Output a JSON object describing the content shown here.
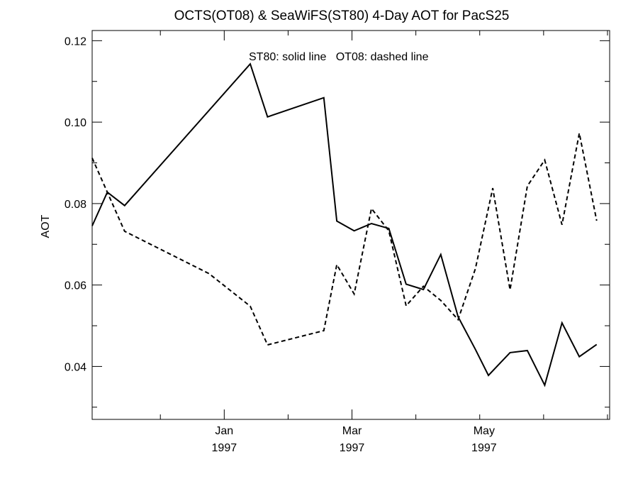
{
  "chart_data": {
    "type": "line",
    "title": "OCTS(OT08) & SeaWiFS(ST80) 4-Day AOT for PacS25",
    "ylabel": "AOT",
    "xlabel": "",
    "annotation": "ST80: solid line   OT08: dashed line",
    "ylim": [
      0.027,
      0.1225
    ],
    "xlim": [
      "1996-11-01",
      "1997-06-28"
    ],
    "y_ticks": [
      "0.04",
      "0.06",
      "0.08",
      "0.10",
      "0.12"
    ],
    "x_ticks": [
      {
        "date": "1997-01-01",
        "month": "Jan",
        "year": "1997"
      },
      {
        "date": "1997-03-01",
        "month": "Mar",
        "year": "1997"
      },
      {
        "date": "1997-05-01",
        "month": "May",
        "year": "1997"
      }
    ],
    "grid": false,
    "series": [
      {
        "name": "ST80",
        "style": "solid",
        "color": "#000000",
        "points": [
          {
            "x": "1996-11-01",
            "y": 0.0745
          },
          {
            "x": "1996-11-08",
            "y": 0.0828
          },
          {
            "x": "1996-11-16",
            "y": 0.0795
          },
          {
            "x": "1997-01-13",
            "y": 0.1143
          },
          {
            "x": "1997-01-21",
            "y": 0.1013
          },
          {
            "x": "1997-02-16",
            "y": 0.106
          },
          {
            "x": "1997-02-22",
            "y": 0.0757
          },
          {
            "x": "1997-03-02",
            "y": 0.0733
          },
          {
            "x": "1997-03-10",
            "y": 0.0751
          },
          {
            "x": "1997-03-18",
            "y": 0.0739
          },
          {
            "x": "1997-03-26",
            "y": 0.0602
          },
          {
            "x": "1997-04-03",
            "y": 0.0589
          },
          {
            "x": "1997-04-11",
            "y": 0.0675
          },
          {
            "x": "1997-04-19",
            "y": 0.0522
          },
          {
            "x": "1997-04-27",
            "y": 0.0442
          },
          {
            "x": "1997-05-03",
            "y": 0.0378
          },
          {
            "x": "1997-05-13",
            "y": 0.0434
          },
          {
            "x": "1997-05-21",
            "y": 0.0439
          },
          {
            "x": "1997-05-29",
            "y": 0.0354
          },
          {
            "x": "1997-06-06",
            "y": 0.0507
          },
          {
            "x": "1997-06-14",
            "y": 0.0424
          },
          {
            "x": "1997-06-22",
            "y": 0.0454
          }
        ]
      },
      {
        "name": "OT08",
        "style": "dashed",
        "color": "#000000",
        "points": [
          {
            "x": "1996-11-01",
            "y": 0.0912
          },
          {
            "x": "1996-11-16",
            "y": 0.0732
          },
          {
            "x": "1996-12-25",
            "y": 0.0628
          },
          {
            "x": "1997-01-13",
            "y": 0.0548
          },
          {
            "x": "1997-01-21",
            "y": 0.0453
          },
          {
            "x": "1997-02-16",
            "y": 0.0488
          },
          {
            "x": "1997-02-22",
            "y": 0.065
          },
          {
            "x": "1997-03-02",
            "y": 0.0578
          },
          {
            "x": "1997-03-10",
            "y": 0.0788
          },
          {
            "x": "1997-03-18",
            "y": 0.0733
          },
          {
            "x": "1997-03-26",
            "y": 0.0549
          },
          {
            "x": "1997-04-03",
            "y": 0.0597
          },
          {
            "x": "1997-04-11",
            "y": 0.0562
          },
          {
            "x": "1997-04-19",
            "y": 0.0515
          },
          {
            "x": "1997-04-27",
            "y": 0.064
          },
          {
            "x": "1997-05-05",
            "y": 0.0838
          },
          {
            "x": "1997-05-13",
            "y": 0.0588
          },
          {
            "x": "1997-05-21",
            "y": 0.0843
          },
          {
            "x": "1997-05-29",
            "y": 0.0907
          },
          {
            "x": "1997-06-06",
            "y": 0.0748
          },
          {
            "x": "1997-06-14",
            "y": 0.0973
          },
          {
            "x": "1997-06-22",
            "y": 0.0758
          }
        ]
      }
    ]
  }
}
